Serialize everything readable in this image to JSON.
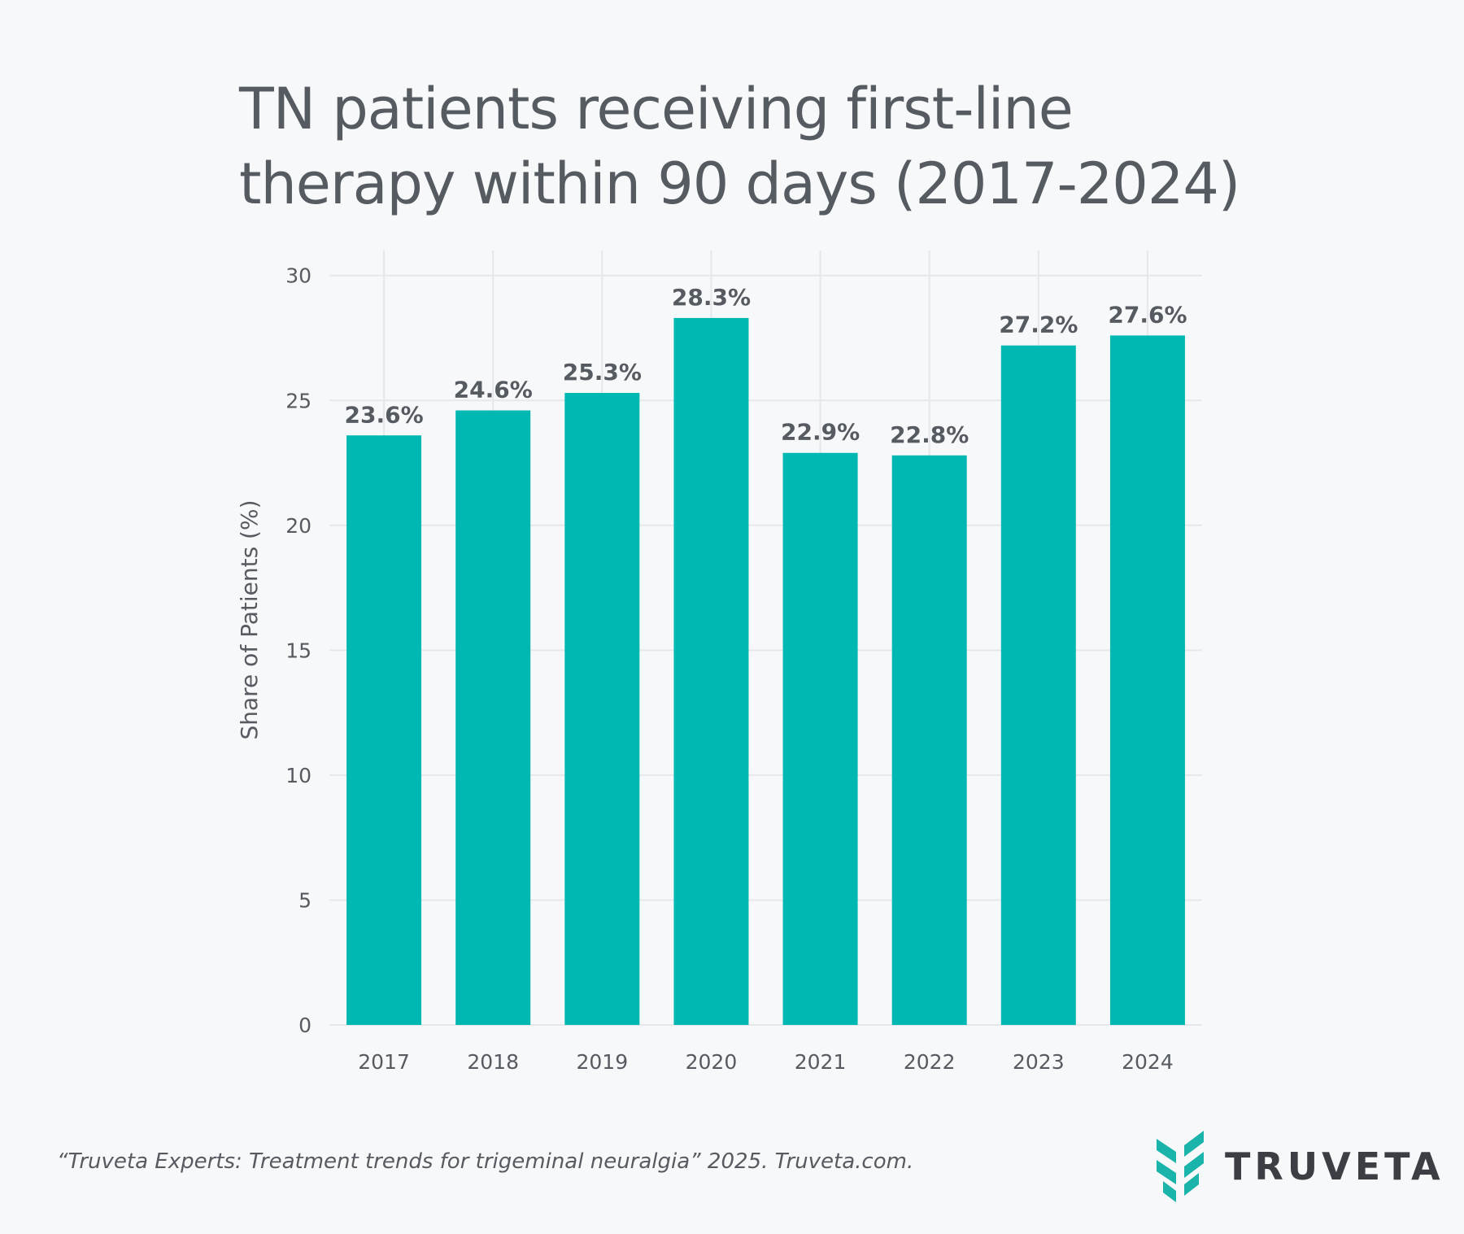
{
  "title_lines": [
    "TN patients receiving first-line",
    "therapy within 90 days (2017-2024)"
  ],
  "footer": "“Truveta Experts: Treatment trends for trigeminal neuralgia” 2025. Truveta.com.",
  "brand": {
    "name": "TRUVETA",
    "icon": "truveta-logo-icon",
    "color": "#1bb4ab"
  },
  "chart_data": {
    "type": "bar",
    "categories": [
      "2017",
      "2018",
      "2019",
      "2020",
      "2021",
      "2022",
      "2023",
      "2024"
    ],
    "values": [
      23.6,
      24.6,
      25.3,
      28.3,
      22.9,
      22.8,
      27.2,
      27.6
    ],
    "data_labels": [
      "23.6%",
      "24.6%",
      "25.3%",
      "28.3%",
      "22.9%",
      "22.8%",
      "27.2%",
      "27.6%"
    ],
    "ylabel": "Share of Patients (%)",
    "xlabel": "",
    "ylim": [
      0,
      31
    ],
    "yticks": [
      0,
      5,
      10,
      15,
      20,
      25,
      30
    ],
    "grid": true,
    "bar_color": "#00b8b2"
  }
}
